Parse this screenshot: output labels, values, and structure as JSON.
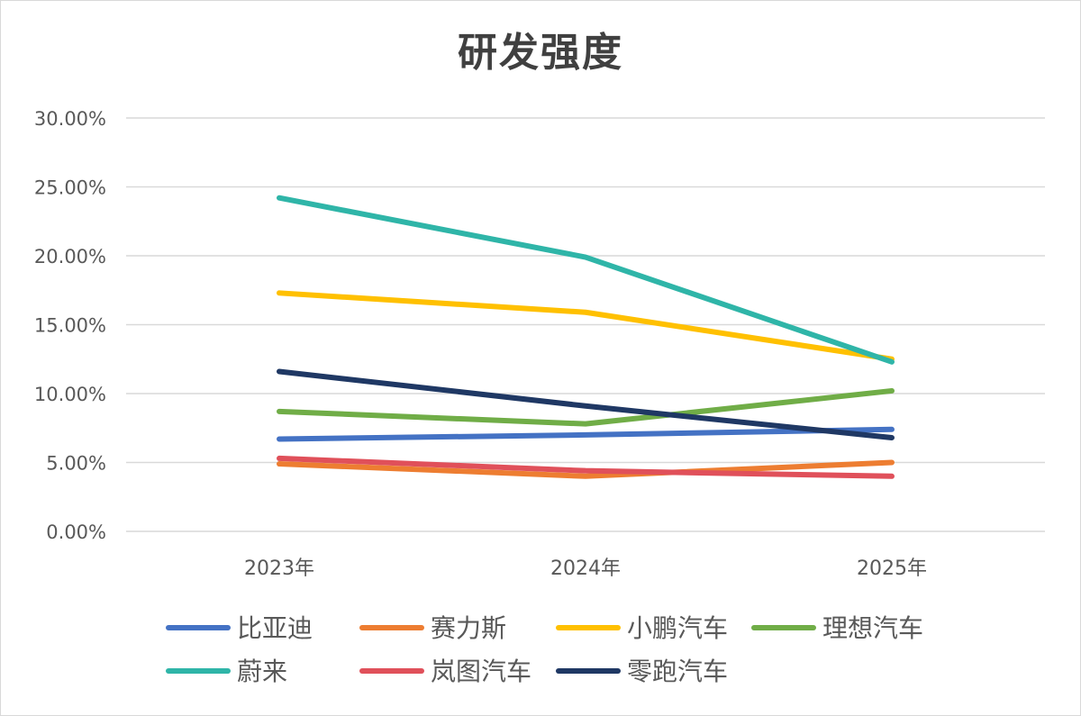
{
  "chart_data": {
    "type": "line",
    "title": "研发强度",
    "xlabel": "",
    "ylabel": "",
    "categories": [
      "2023年",
      "2024年",
      "2025年"
    ],
    "ylim": [
      0,
      0.3
    ],
    "y_ticks": [
      "0.00%",
      "5.00%",
      "10.00%",
      "15.00%",
      "20.00%",
      "25.00%",
      "30.00%"
    ],
    "y_tick_values": [
      0,
      0.05,
      0.1,
      0.15,
      0.2,
      0.25,
      0.3
    ],
    "grid": true,
    "legend_position": "bottom",
    "series": [
      {
        "name": "比亚迪",
        "color": "#4472c4",
        "values": [
          0.067,
          0.07,
          0.074
        ]
      },
      {
        "name": "赛力斯",
        "color": "#ed7d31",
        "values": [
          0.049,
          0.04,
          0.05
        ]
      },
      {
        "name": "小鹏汽车",
        "color": "#ffc000",
        "values": [
          0.173,
          0.159,
          0.125
        ]
      },
      {
        "name": "理想汽车",
        "color": "#70ad47",
        "values": [
          0.087,
          0.078,
          0.102
        ]
      },
      {
        "name": "蔚来",
        "color": "#2fb5a8",
        "values": [
          0.242,
          0.199,
          0.123
        ]
      },
      {
        "name": "岚图汽车",
        "color": "#e0505a",
        "values": [
          0.053,
          0.044,
          0.04
        ]
      },
      {
        "name": "零跑汽车",
        "color": "#1f3864",
        "values": [
          0.116,
          0.091,
          0.068
        ]
      }
    ]
  }
}
